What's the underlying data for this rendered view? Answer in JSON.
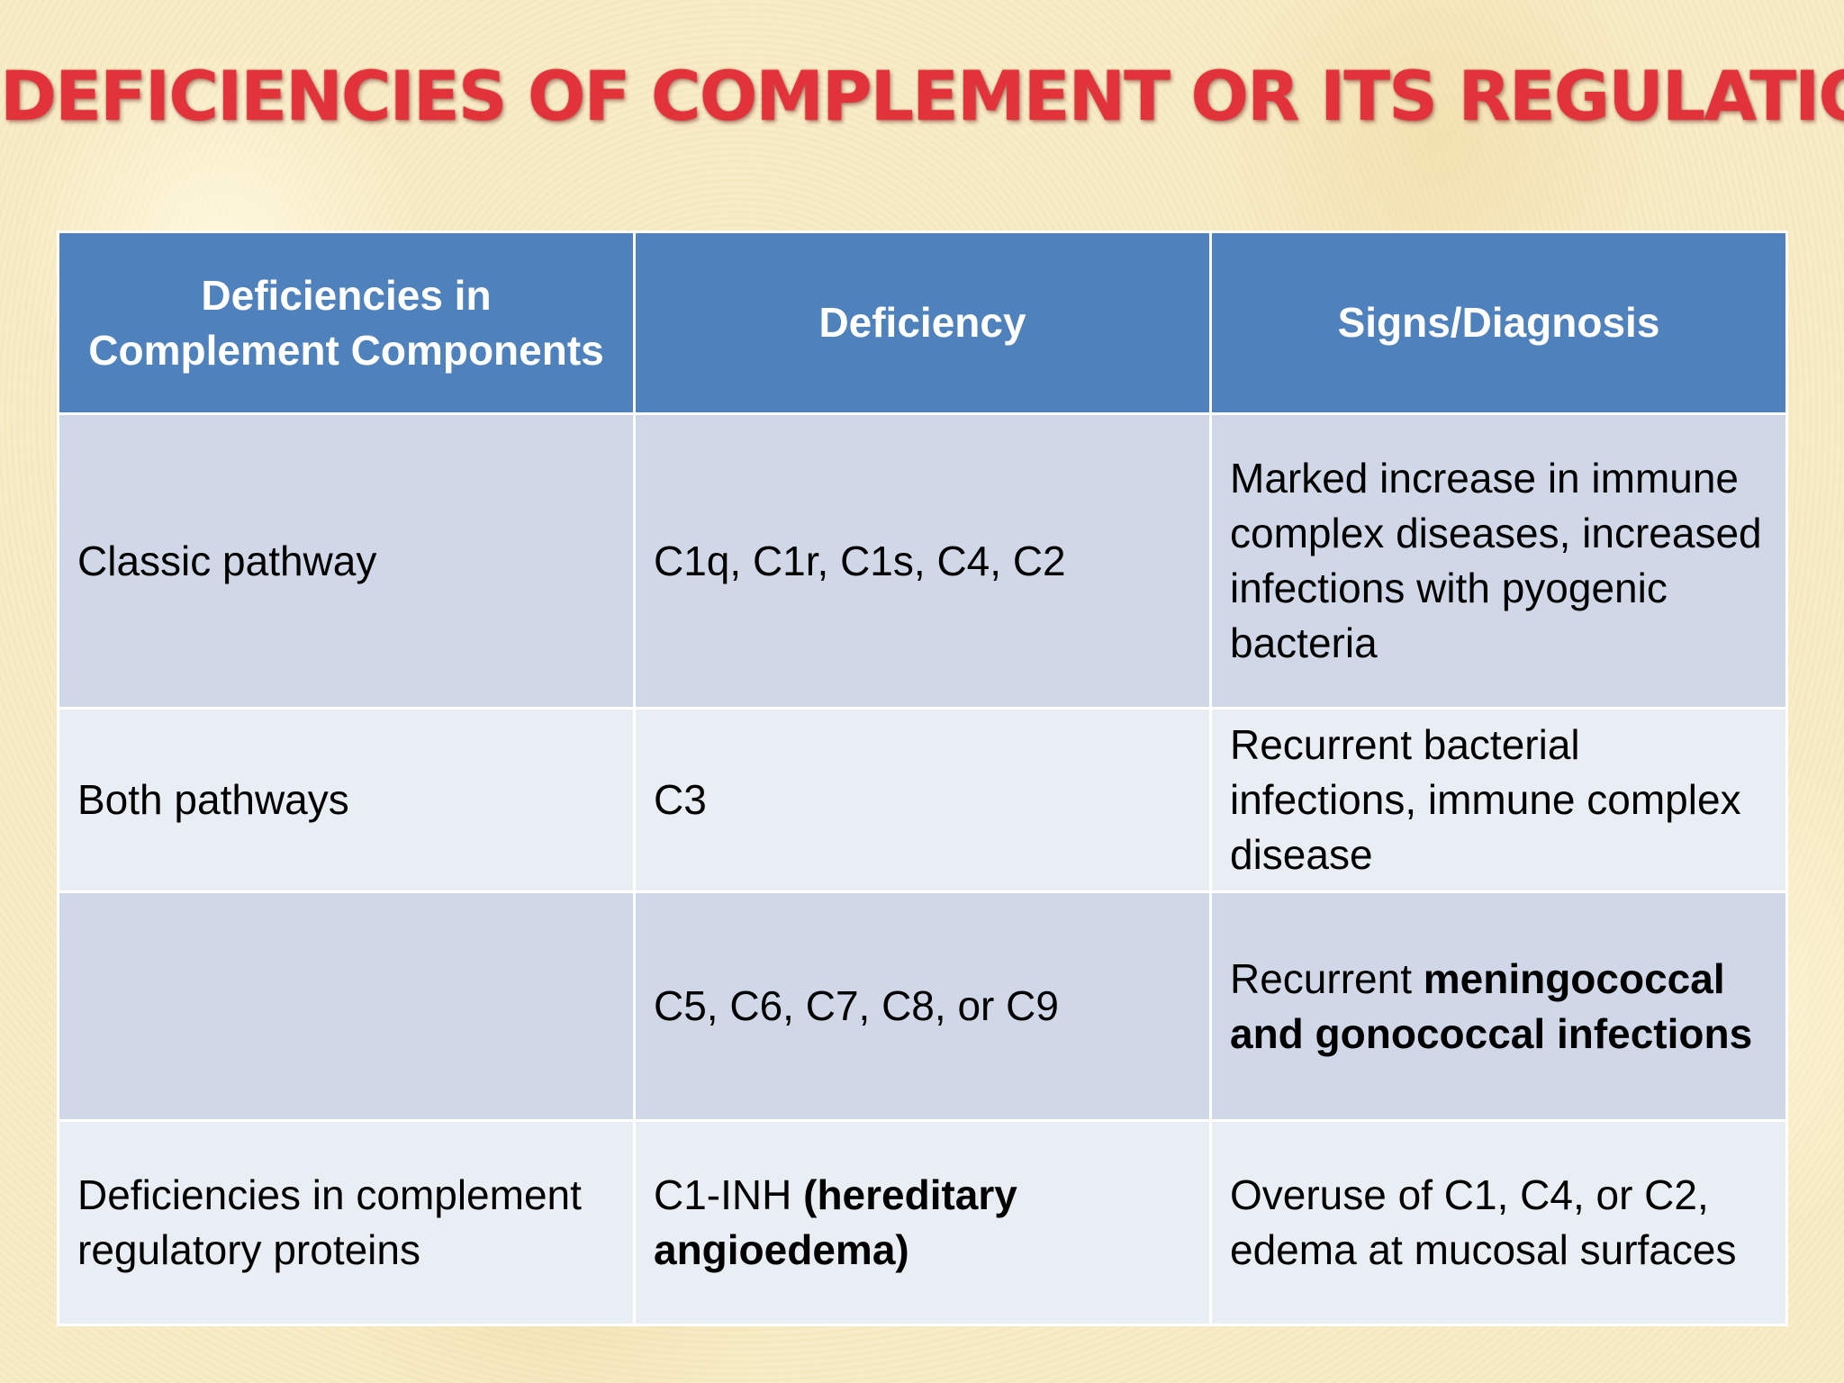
{
  "slide": {
    "title": "DEFICIENCIES OF COMPLEMENT OR ITS REGULATION"
  },
  "table": {
    "headers": [
      "Deficiencies in Complement Components",
      "Deficiency",
      "Signs/Diagnosis"
    ],
    "rows": [
      {
        "component": "Classic pathway",
        "deficiency": "C1q, C1r, C1s, C4, C2",
        "signs": "Marked increase in immune complex diseases, increased infections with pyogenic bacteria"
      },
      {
        "component": "Both pathways",
        "deficiency": "C3",
        "signs": "Recurrent bacterial infections, immune complex disease"
      },
      {
        "component": "",
        "deficiency": "C5, C6, C7, C8, or C9",
        "signs_plain": "Recurrent",
        "signs_bold": "meningococcal and gonococcal infections"
      },
      {
        "component": "Deficiencies in complement regulatory proteins",
        "deficiency_plain": "C1-INH",
        "deficiency_bold": "(hereditary angioedema)",
        "signs": "Overuse of C1, C4, or C2, edema at mucosal surfaces"
      }
    ]
  }
}
